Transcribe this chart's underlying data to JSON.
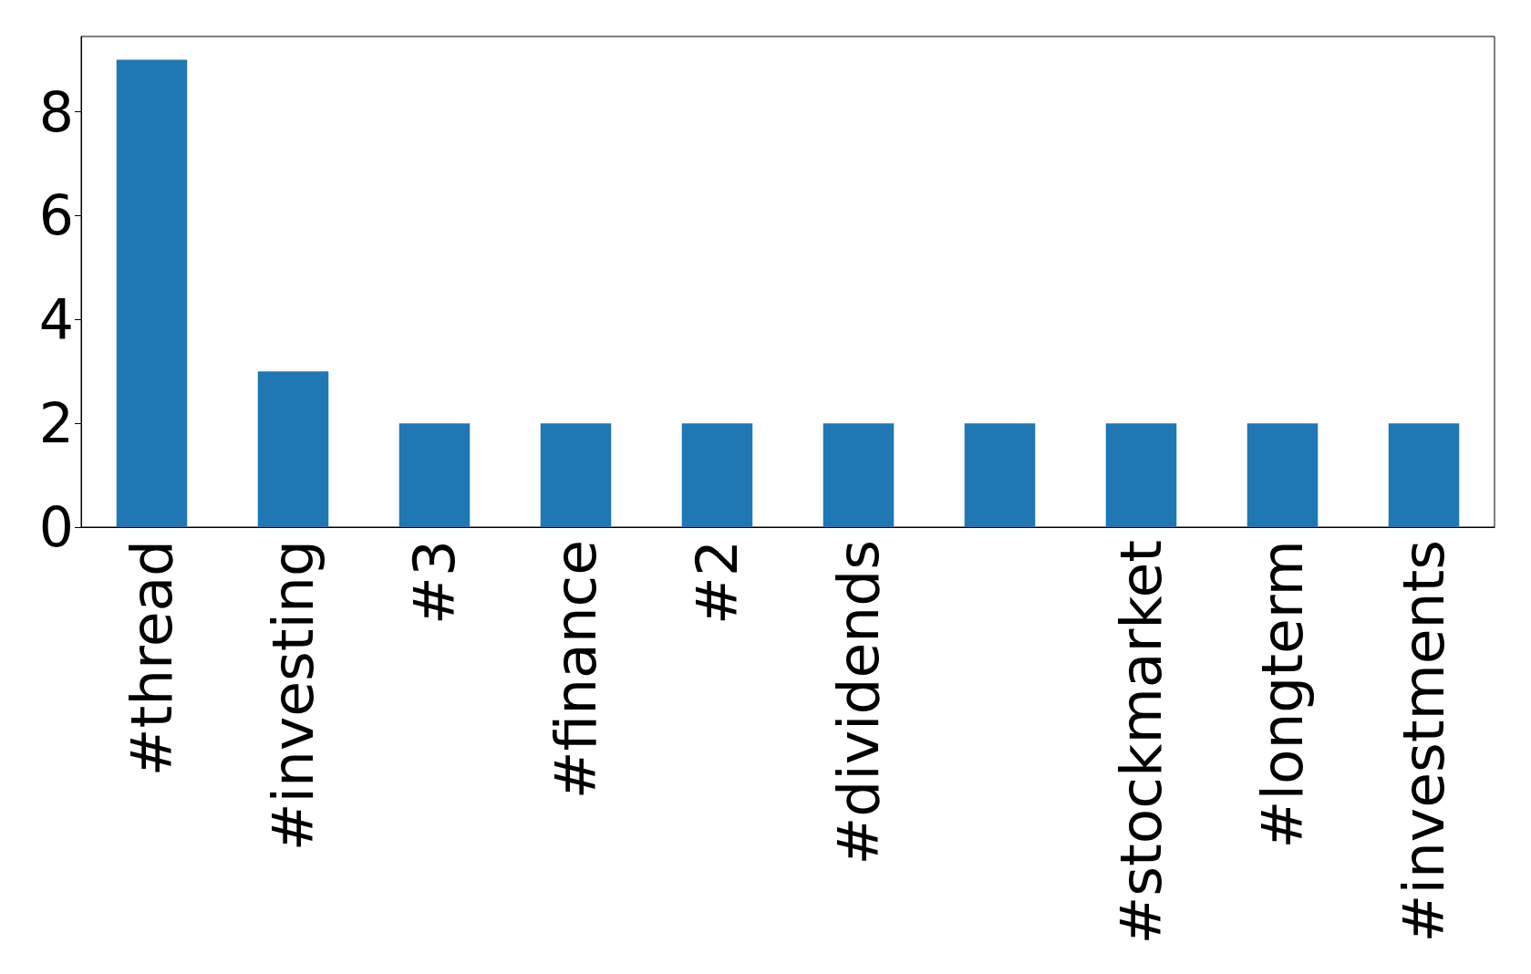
{
  "chart_data": {
    "type": "bar",
    "categories": [
      "#thread",
      "#investing",
      "#3",
      "#finance",
      "#2",
      "#dividends",
      null,
      "#stockmarket",
      "#longterm",
      "#investments"
    ],
    "values": [
      9,
      3,
      2,
      2,
      2,
      2,
      2,
      2,
      2,
      2
    ],
    "color": "#1f77b4",
    "ylim": [
      0,
      9.45
    ],
    "yticks": [
      0,
      2,
      4,
      6,
      8
    ]
  }
}
